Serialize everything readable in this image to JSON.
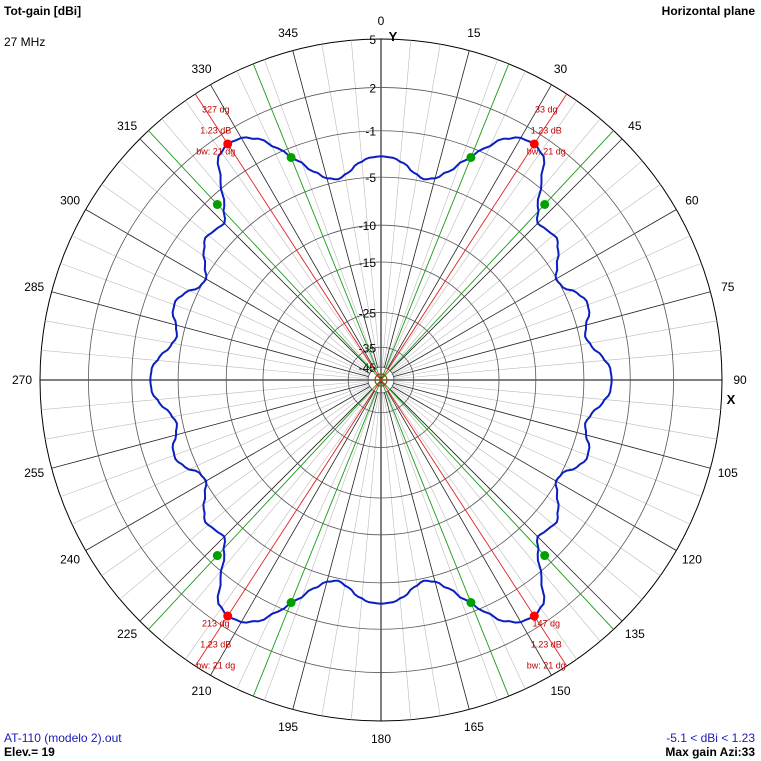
{
  "header": {
    "quantity": "Tot-gain [dBi]",
    "frequency": "27 MHz",
    "plane": "Horizontal plane"
  },
  "footer": {
    "file": "AT-110 (modelo 2).out",
    "elevation": "Elev.= 19",
    "gain_range": "-5.1 < dBi < 1.23",
    "max_gain": "Max gain Azi:33"
  },
  "colors": {
    "pattern": "#0a1fbf",
    "max_markers": "#ff0000",
    "beamwidth_markers": "#00a000",
    "max_lines": "#e02020",
    "beamwidth_lines": "#1a9a1a",
    "grid": "#000000",
    "annotations": "#c00000",
    "footer_text": "#1a1ab8"
  },
  "chart_data": {
    "type": "polar",
    "angular_axis": {
      "ticks": [
        0,
        15,
        30,
        45,
        60,
        75,
        90,
        105,
        120,
        135,
        150,
        165,
        180,
        195,
        210,
        225,
        240,
        255,
        270,
        285,
        300,
        315,
        330,
        345
      ],
      "tick_labels": [
        "0",
        "15",
        "30",
        "45",
        "60",
        "75",
        "90",
        "105",
        "120",
        "135",
        "150",
        "165",
        "180",
        "195",
        "210",
        "225",
        "240",
        "255",
        "270",
        "285",
        "300",
        "315",
        "330",
        "345"
      ],
      "direction": "clockwise",
      "zero_at": "top",
      "minor_step_deg": 5
    },
    "axis_letters": {
      "y": "Y",
      "x": "X"
    },
    "radial_axis": {
      "unit": "dBi",
      "rings": [
        5,
        2,
        -1,
        -5,
        -10,
        -15,
        -25,
        -35,
        -45
      ],
      "ring_labels": [
        "5",
        "2",
        "-1",
        "-5",
        "-10",
        "-15",
        "-25",
        "-35",
        "-45"
      ],
      "ring_radius_fraction": [
        1.0,
        0.858,
        0.731,
        0.595,
        0.454,
        0.346,
        0.198,
        0.096,
        0.038
      ]
    },
    "pattern": {
      "symmetry": "four-fold (mirror in X and Y)",
      "azimuth_deg": [
        0,
        3,
        6,
        9,
        12,
        15,
        18,
        21,
        24,
        27,
        30,
        33,
        36,
        39,
        42,
        45,
        48,
        51,
        54,
        57,
        60,
        63,
        66,
        69,
        72,
        75,
        78,
        81,
        84,
        87,
        90
      ],
      "gain_dbi": [
        -3.2,
        -3.3,
        -3.7,
        -4.4,
        -4.8,
        -4.5,
        -3.6,
        -2.2,
        -0.7,
        0.5,
        1.1,
        1.23,
        0.9,
        -0.6,
        -2.3,
        -3.4,
        -3.2,
        -3.0,
        -3.6,
        -4.4,
        -5.1,
        -4.9,
        -4.0,
        -3.5,
        -3.6,
        -4.2,
        -4.5,
        -4.1,
        -3.3,
        -2.7,
        -2.6
      ]
    },
    "max_gain_markers": [
      {
        "azimuth": 33,
        "label": "33 dg",
        "gain": "1.23 dB",
        "bw": "bw: 21 dg"
      },
      {
        "azimuth": 147,
        "label": "147 dg",
        "gain": "1.23 dB",
        "bw": "bw: 21 dg"
      },
      {
        "azimuth": 213,
        "label": "213 dg",
        "gain": "1.23 dB",
        "bw": "bw: 21 dg"
      },
      {
        "azimuth": 327,
        "label": "327 dg",
        "gain": "1.23 dB",
        "bw": "bw: 21 dg"
      }
    ],
    "beamwidth_markers": [
      {
        "azimuth": 22,
        "gain_dbi": -1.8
      },
      {
        "azimuth": 43,
        "gain_dbi": -1.8
      },
      {
        "azimuth": 137,
        "gain_dbi": -1.8
      },
      {
        "azimuth": 158,
        "gain_dbi": -1.8
      },
      {
        "azimuth": 202,
        "gain_dbi": -1.8
      },
      {
        "azimuth": 223,
        "gain_dbi": -1.8
      },
      {
        "azimuth": 317,
        "gain_dbi": -1.8
      },
      {
        "azimuth": 338,
        "gain_dbi": -1.8
      }
    ]
  }
}
